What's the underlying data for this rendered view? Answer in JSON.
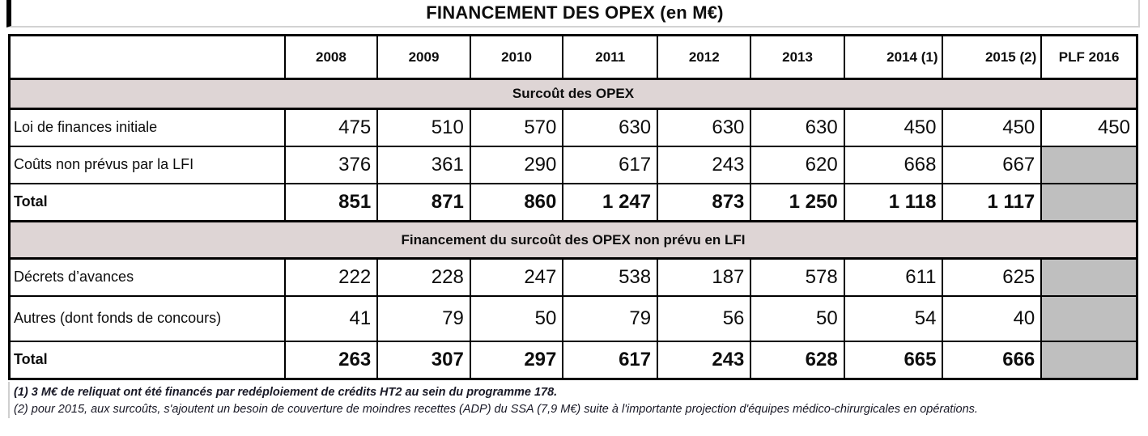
{
  "title": "FINANCEMENT DES OPEX (en M€)",
  "band_color": "#ded5d5",
  "gray_cell_color": "#bfbfbf",
  "chart_data": {
    "type": "table",
    "title": "FINANCEMENT DES OPEX (en M€)",
    "columns": [
      "2008",
      "2009",
      "2010",
      "2011",
      "2012",
      "2013",
      "2014 (1)",
      "2015 (2)",
      "PLF 2016"
    ],
    "sections": [
      {
        "header": "Surcoût des OPEX",
        "rows": [
          {
            "label": "Loi de finances initiale",
            "bold": false,
            "values": [
              "475",
              "510",
              "570",
              "630",
              "630",
              "630",
              "450",
              "450",
              "450"
            ]
          },
          {
            "label": "Coûts non prévus par la LFI",
            "bold": false,
            "values": [
              "376",
              "361",
              "290",
              "617",
              "243",
              "620",
              "668",
              "667",
              null
            ]
          },
          {
            "label": "Total",
            "bold": true,
            "values": [
              "851",
              "871",
              "860",
              "1 247",
              "873",
              "1 250",
              "1 118",
              "1 117",
              null
            ]
          }
        ]
      },
      {
        "header": "Financement du surcoût des OPEX non prévu en LFI",
        "rows": [
          {
            "label": "Décrets d’avances",
            "bold": false,
            "values": [
              "222",
              "228",
              "247",
              "538",
              "187",
              "578",
              "611",
              "625",
              null
            ]
          },
          {
            "label": "Autres (dont fonds de concours)",
            "bold": false,
            "values": [
              "41",
              "79",
              "50",
              "79",
              "56",
              "50",
              "54",
              "40",
              null
            ]
          },
          {
            "label": "Total",
            "bold": true,
            "values": [
              "263",
              "307",
              "297",
              "617",
              "243",
              "628",
              "665",
              "666",
              null
            ]
          }
        ]
      }
    ]
  },
  "footnotes": [
    "(1) 3 M€ de reliquat ont été financés par redéploiement de crédits HT2 au sein du programme 178.",
    "(2) pour 2015, aux surcoûts, s'ajoutent un besoin de couverture de moindres recettes (ADP) du SSA (7,9 M€) suite à l'importante projection d'équipes médico-chirurgicales en opérations."
  ]
}
